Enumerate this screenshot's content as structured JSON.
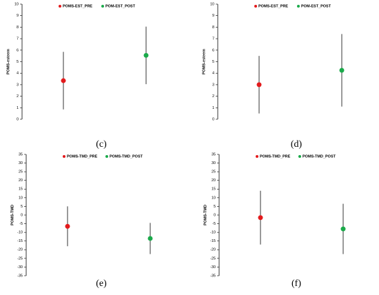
{
  "chart_data": [
    {
      "type": "errorbar",
      "caption": "(c)",
      "ylabel": "POMS-esteem",
      "ylim": [
        0,
        10
      ],
      "yticks": [
        0,
        1,
        2,
        3,
        4,
        5,
        6,
        7,
        8,
        9,
        10
      ],
      "series": [
        {
          "name": "POMS-EST_PRE",
          "color": "#e31a1c",
          "values": [
            3.35
          ],
          "errors": [
            2.5
          ]
        },
        {
          "name": "POM-EST_POST",
          "color": "#1aaa4a",
          "values": [
            5.55
          ],
          "errors": [
            2.5
          ]
        }
      ]
    },
    {
      "type": "errorbar",
      "caption": "(d)",
      "ylabel": "POMS-esteem",
      "ylim": [
        0,
        10
      ],
      "yticks": [
        0,
        1,
        2,
        3,
        4,
        5,
        6,
        7,
        8,
        9,
        10
      ],
      "series": [
        {
          "name": "POMS-EST_PRE",
          "color": "#e31a1c",
          "values": [
            3.0
          ],
          "errors": [
            2.5
          ]
        },
        {
          "name": "POM-EST_POST",
          "color": "#1aaa4a",
          "values": [
            4.25
          ],
          "errors": [
            3.15
          ]
        }
      ]
    },
    {
      "type": "errorbar",
      "caption": "(e)",
      "ylabel": "POMS-TMD",
      "ylim": [
        -35,
        35
      ],
      "yticks": [
        -35,
        -30,
        -25,
        -20,
        -15,
        -10,
        -5,
        0,
        5,
        10,
        15,
        20,
        25,
        30,
        35
      ],
      "series": [
        {
          "name": "POMS-TMD_PRE",
          "color": "#e31a1c",
          "values": [
            -6.5
          ],
          "errors": [
            11.5
          ]
        },
        {
          "name": "POMS-TMD_POST",
          "color": "#1aaa4a",
          "values": [
            -13.5
          ],
          "errors": [
            9
          ]
        }
      ]
    },
    {
      "type": "errorbar",
      "caption": "(f)",
      "ylabel": "POMS-TMD",
      "ylim": [
        -35,
        35
      ],
      "yticks": [
        -35,
        -30,
        -25,
        -20,
        -15,
        -10,
        -5,
        0,
        5,
        10,
        15,
        20,
        25,
        30,
        35
      ],
      "series": [
        {
          "name": "POMS-TMD_PRE",
          "color": "#e31a1c",
          "values": [
            -1.5
          ],
          "errors": [
            15.5
          ]
        },
        {
          "name": "POMS-TMD_POST",
          "color": "#1aaa4a",
          "values": [
            -8
          ],
          "errors": [
            14.5
          ]
        }
      ]
    }
  ]
}
